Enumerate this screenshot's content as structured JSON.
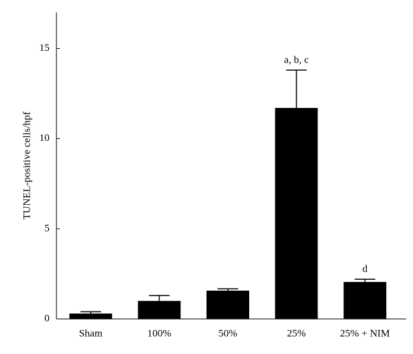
{
  "chart_data": {
    "type": "bar",
    "y_label": "TUNEL-positive cells/hpf",
    "categories": [
      "Sham",
      "100%",
      "50%",
      "25%",
      "25% + NIM"
    ],
    "values": [
      0.3,
      1.0,
      1.57,
      11.7,
      2.05
    ],
    "errors": [
      0.1,
      0.3,
      0.1,
      2.1,
      0.15
    ],
    "color": "#000000",
    "ylim": [
      0,
      17
    ],
    "yticks": [
      0,
      5,
      10,
      15
    ],
    "grid": false,
    "annotations": [
      {
        "category": 3,
        "text": "a, b, c"
      },
      {
        "category": 4,
        "text": "d"
      }
    ]
  }
}
